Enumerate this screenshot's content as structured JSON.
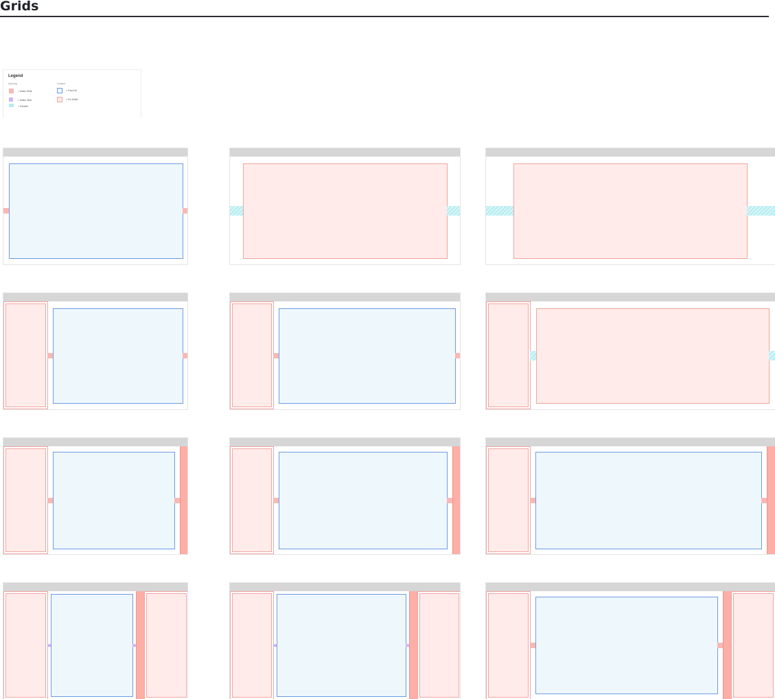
{
  "page": {
    "title": "Grids"
  },
  "legend": {
    "title": "Legend",
    "spacing_heading": "Spacing",
    "content_heading": "Content",
    "spacing_items": [
      {
        "label": "= Static Wide",
        "color": "#f8b9b6"
      },
      {
        "label": "= Static 2Nar",
        "color": "#d4b4f4"
      },
      {
        "label": "= Flexible",
        "color": "#b6ecf1"
      }
    ],
    "content_items": [
      {
        "label": "= Fixed W",
        "color": "#6d9be2"
      },
      {
        "label": "= Fix Width",
        "color": "#f0a49c"
      }
    ]
  },
  "colors": {
    "topbar": "#d6d6d6",
    "static_wide": "#f8b9b6",
    "static_narrow": "#d4b4f4",
    "flexible": "#b6ecf1",
    "content_fixed_border": "#6d9be2",
    "content_fixed_fill": "#eef7fc",
    "content_flex_border": "#f0a49c",
    "content_flex_fill": "#ffecea",
    "rail": "#fdaea7"
  }
}
